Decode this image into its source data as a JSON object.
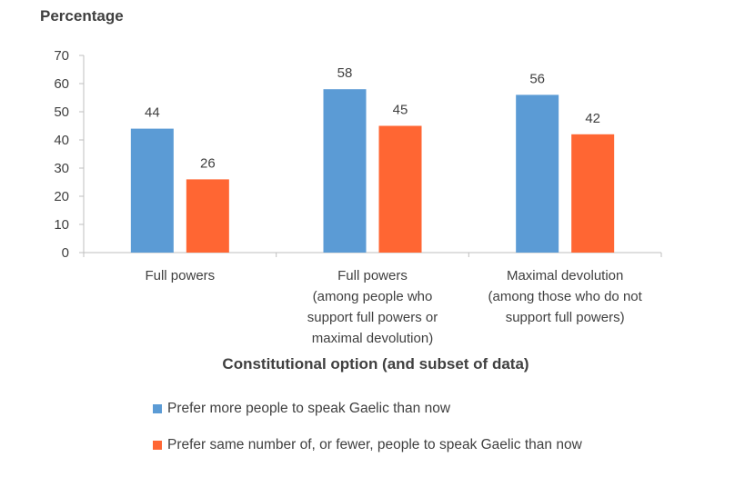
{
  "chart_data": {
    "type": "bar",
    "ylabel": "Percentage",
    "xlabel": "Constitutional option (and subset of data)",
    "ylim": [
      0,
      70
    ],
    "yticks": [
      0,
      10,
      20,
      30,
      40,
      50,
      60,
      70
    ],
    "grid": false,
    "legend_position": "bottom",
    "categories": [
      [
        "Full powers"
      ],
      [
        "Full powers",
        "(among people who",
        "support full powers or",
        "maximal devolution)"
      ],
      [
        "Maximal devolution",
        "(among those who do not",
        "support full powers)"
      ]
    ],
    "series": [
      {
        "name": "Prefer more people to speak Gaelic than now",
        "color": "#5B9BD5",
        "values": [
          44,
          58,
          56
        ]
      },
      {
        "name": "Prefer same number of, or fewer, people to speak Gaelic than now",
        "color": "#FF6633",
        "values": [
          26,
          45,
          42
        ]
      }
    ]
  }
}
